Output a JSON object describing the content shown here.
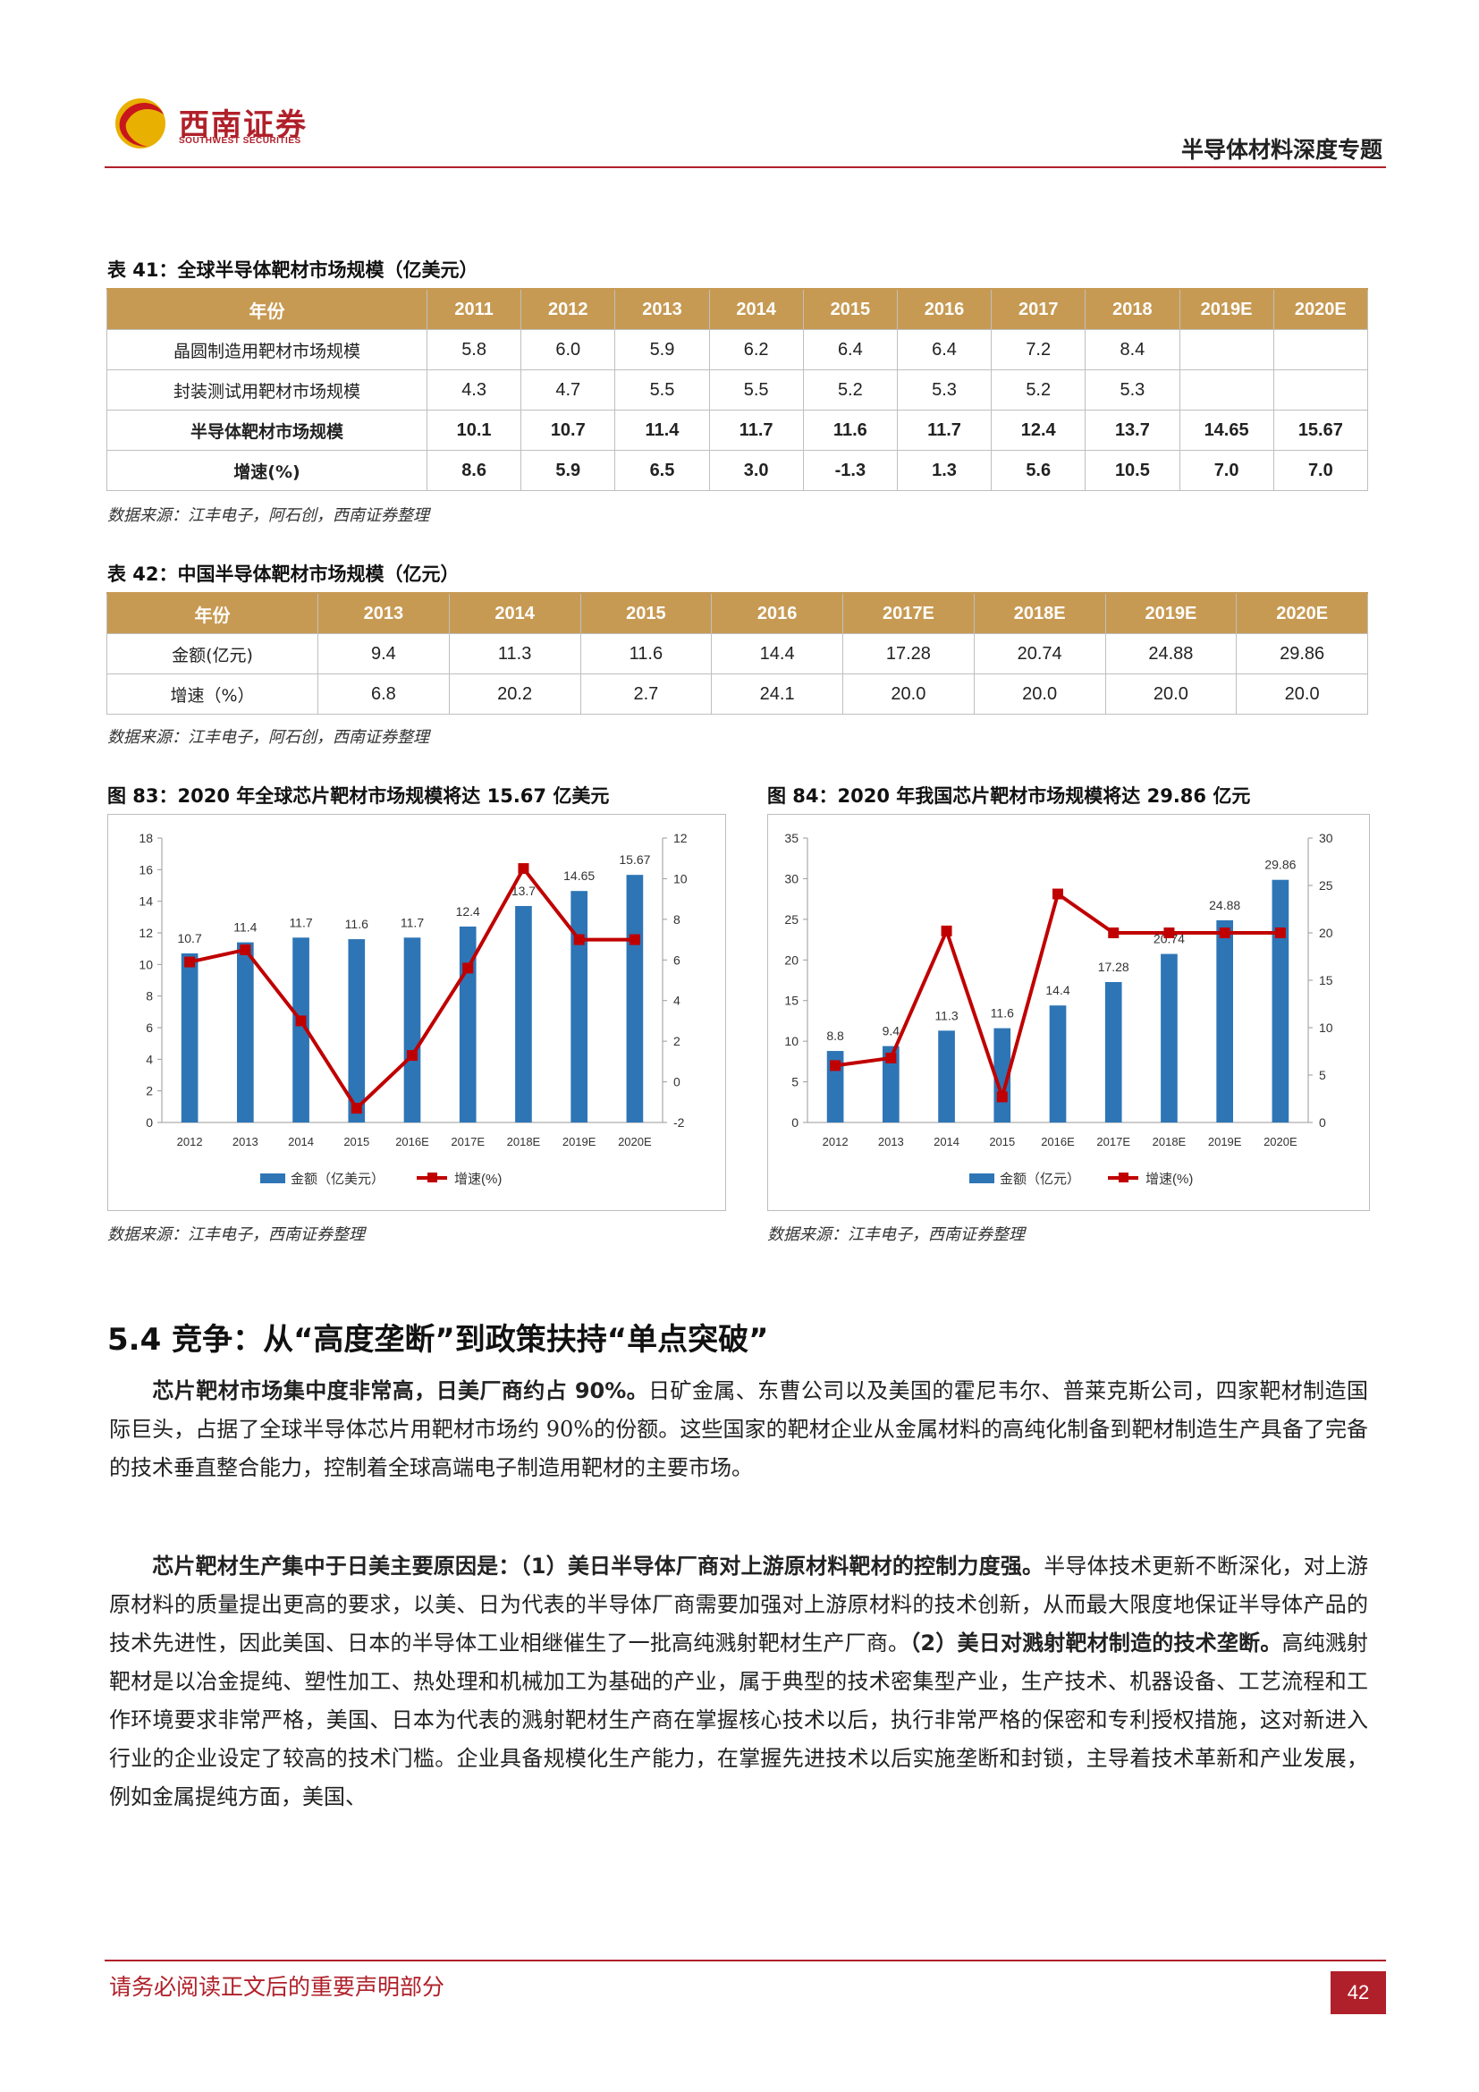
{
  "header": {
    "logo_text": "西南证券",
    "logo_sub": "SOUTHWEST SECURITIES",
    "title": "半导体材料深度专题",
    "brand_color": "#b0202a"
  },
  "table41": {
    "caption": "表 41：全球半导体靶材市场规模（亿美元）",
    "columns": [
      "年份",
      "2011",
      "2012",
      "2013",
      "2014",
      "2015",
      "2016",
      "2017",
      "2018",
      "2019E",
      "2020E"
    ],
    "rows": [
      [
        "晶圆制造用靶材市场规模",
        "5.8",
        "6.0",
        "5.9",
        "6.2",
        "6.4",
        "6.4",
        "7.2",
        "8.4",
        "",
        ""
      ],
      [
        "封装测试用靶材市场规模",
        "4.3",
        "4.7",
        "5.5",
        "5.5",
        "5.2",
        "5.3",
        "5.2",
        "5.3",
        "",
        ""
      ],
      [
        "半导体靶材市场规模",
        "10.1",
        "10.7",
        "11.4",
        "11.7",
        "11.6",
        "11.7",
        "12.4",
        "13.7",
        "14.65",
        "15.67"
      ],
      [
        "增速(%)",
        "8.6",
        "5.9",
        "6.5",
        "3.0",
        "-1.3",
        "1.3",
        "5.6",
        "10.5",
        "7.0",
        "7.0"
      ]
    ],
    "source": "数据来源：江丰电子，阿石创，西南证券整理"
  },
  "table42": {
    "caption": "表 42：中国半导体靶材市场规模（亿元）",
    "columns": [
      "年份",
      "2013",
      "2014",
      "2015",
      "2016",
      "2017E",
      "2018E",
      "2019E",
      "2020E"
    ],
    "rows": [
      [
        "金额(亿元)",
        "9.4",
        "11.3",
        "11.6",
        "14.4",
        "17.28",
        "20.74",
        "24.88",
        "29.86"
      ],
      [
        "增速（%）",
        "6.8",
        "20.2",
        "2.7",
        "24.1",
        "20.0",
        "20.0",
        "20.0",
        "20.0"
      ]
    ],
    "source": "数据来源：江丰电子，阿石创，西南证券整理"
  },
  "fig83": {
    "caption": "图 83：2020 年全球芯片靶材市场规模将达 15.67 亿美元",
    "source": "数据来源：江丰电子，西南证券整理"
  },
  "fig84": {
    "caption": "图 84：2020 年我国芯片靶材市场规模将达 29.86 亿元",
    "source": "数据来源：江丰电子，西南证券整理"
  },
  "chart_data": [
    {
      "type": "bar",
      "categories": [
        "2012",
        "2013",
        "2014",
        "2015",
        "2016E",
        "2017E",
        "2018E",
        "2019E",
        "2020E"
      ],
      "series": [
        {
          "name": "金额（亿美元）",
          "type": "bar",
          "axis": "left",
          "color": "#2e75b6",
          "values": [
            10.7,
            11.4,
            11.7,
            11.6,
            11.7,
            12.4,
            13.7,
            14.65,
            15.67
          ],
          "labels": [
            "10.7",
            "11.4",
            "11.7",
            "11.6",
            "11.7",
            "12.4",
            "13.7",
            "14.65",
            "15.67"
          ]
        },
        {
          "name": "增速(%)",
          "type": "line",
          "axis": "right",
          "color": "#c00000",
          "values": [
            5.9,
            6.5,
            3.0,
            -1.3,
            1.3,
            5.6,
            10.5,
            7.0,
            7.0
          ]
        }
      ],
      "ylim_left": [
        0,
        18
      ],
      "yticks_left": [
        0,
        2,
        4,
        6,
        8,
        10,
        12,
        14,
        16,
        18
      ],
      "ylim_right": [
        -2,
        12
      ],
      "yticks_right": [
        -2,
        0,
        2,
        4,
        6,
        8,
        10,
        12
      ],
      "legend": "bottom",
      "grid": false
    },
    {
      "type": "bar",
      "categories": [
        "2012",
        "2013",
        "2014",
        "2015",
        "2016E",
        "2017E",
        "2018E",
        "2019E",
        "2020E"
      ],
      "series": [
        {
          "name": "金额（亿元）",
          "type": "bar",
          "axis": "left",
          "color": "#2e75b6",
          "values": [
            8.8,
            9.4,
            11.3,
            11.6,
            14.4,
            17.28,
            20.74,
            24.88,
            29.86
          ],
          "labels": [
            "8.8",
            "9.4",
            "11.3",
            "11.6",
            "14.4",
            "17.28",
            "20.74",
            "24.88",
            "29.86"
          ]
        },
        {
          "name": "增速(%)",
          "type": "line",
          "axis": "right",
          "color": "#c00000",
          "values": [
            6.0,
            6.8,
            20.2,
            2.7,
            24.1,
            20.0,
            20.0,
            20.0,
            20.0
          ]
        }
      ],
      "ylim_left": [
        0,
        35
      ],
      "yticks_left": [
        0,
        5,
        10,
        15,
        20,
        25,
        30,
        35
      ],
      "ylim_right": [
        0,
        30
      ],
      "yticks_right": [
        0,
        5,
        10,
        15,
        20,
        25,
        30
      ],
      "legend": "bottom",
      "grid": false
    }
  ],
  "section": {
    "title": "5.4 竞争：从“高度垄断”到政策扶持“单点突破”",
    "p1_bold": "芯片靶材市场集中度非常高，日美厂商约占 90%。",
    "p1_text": "日矿金属、东曹公司以及美国的霍尼韦尔、普莱克斯公司，四家靶材制造国际巨头，占据了全球半导体芯片用靶材市场约 90%的份额。这些国家的靶材企业从金属材料的高纯化制备到靶材制造生产具备了完备的技术垂直整合能力，控制着全球高端电子制造用靶材的主要市场。",
    "p2_bold1": "芯片靶材生产集中于日美主要原因是：（1）美日半导体厂商对上游原材料靶材的控制力度强。",
    "p2_text1": "半导体技术更新不断深化，对上游原材料的质量提出更高的要求，以美、日为代表的半导体厂商需要加强对上游原材料的技术创新，从而最大限度地保证半导体产品的技术先进性，因此美国、日本的半导体工业相继催生了一批高纯溅射靶材生产厂商。",
    "p2_bold2": "（2）美日对溅射靶材制造的技术垄断。",
    "p2_text2": "高纯溅射靶材是以冶金提纯、塑性加工、热处理和机械加工为基础的产业，属于典型的技术密集型产业，生产技术、机器设备、工艺流程和工作环境要求非常严格，美国、日本为代表的溅射靶材生产商在掌握核心技术以后，执行非常严格的保密和专利授权措施，这对新进入行业的企业设定了较高的技术门槛。企业具备规模化生产能力，在掌握先进技术以后实施垄断和封锁，主导着技术革新和产业发展，例如金属提纯方面，美国、"
  },
  "footer": {
    "note": "请务必阅读正文后的重要声明部分",
    "page": "42"
  }
}
